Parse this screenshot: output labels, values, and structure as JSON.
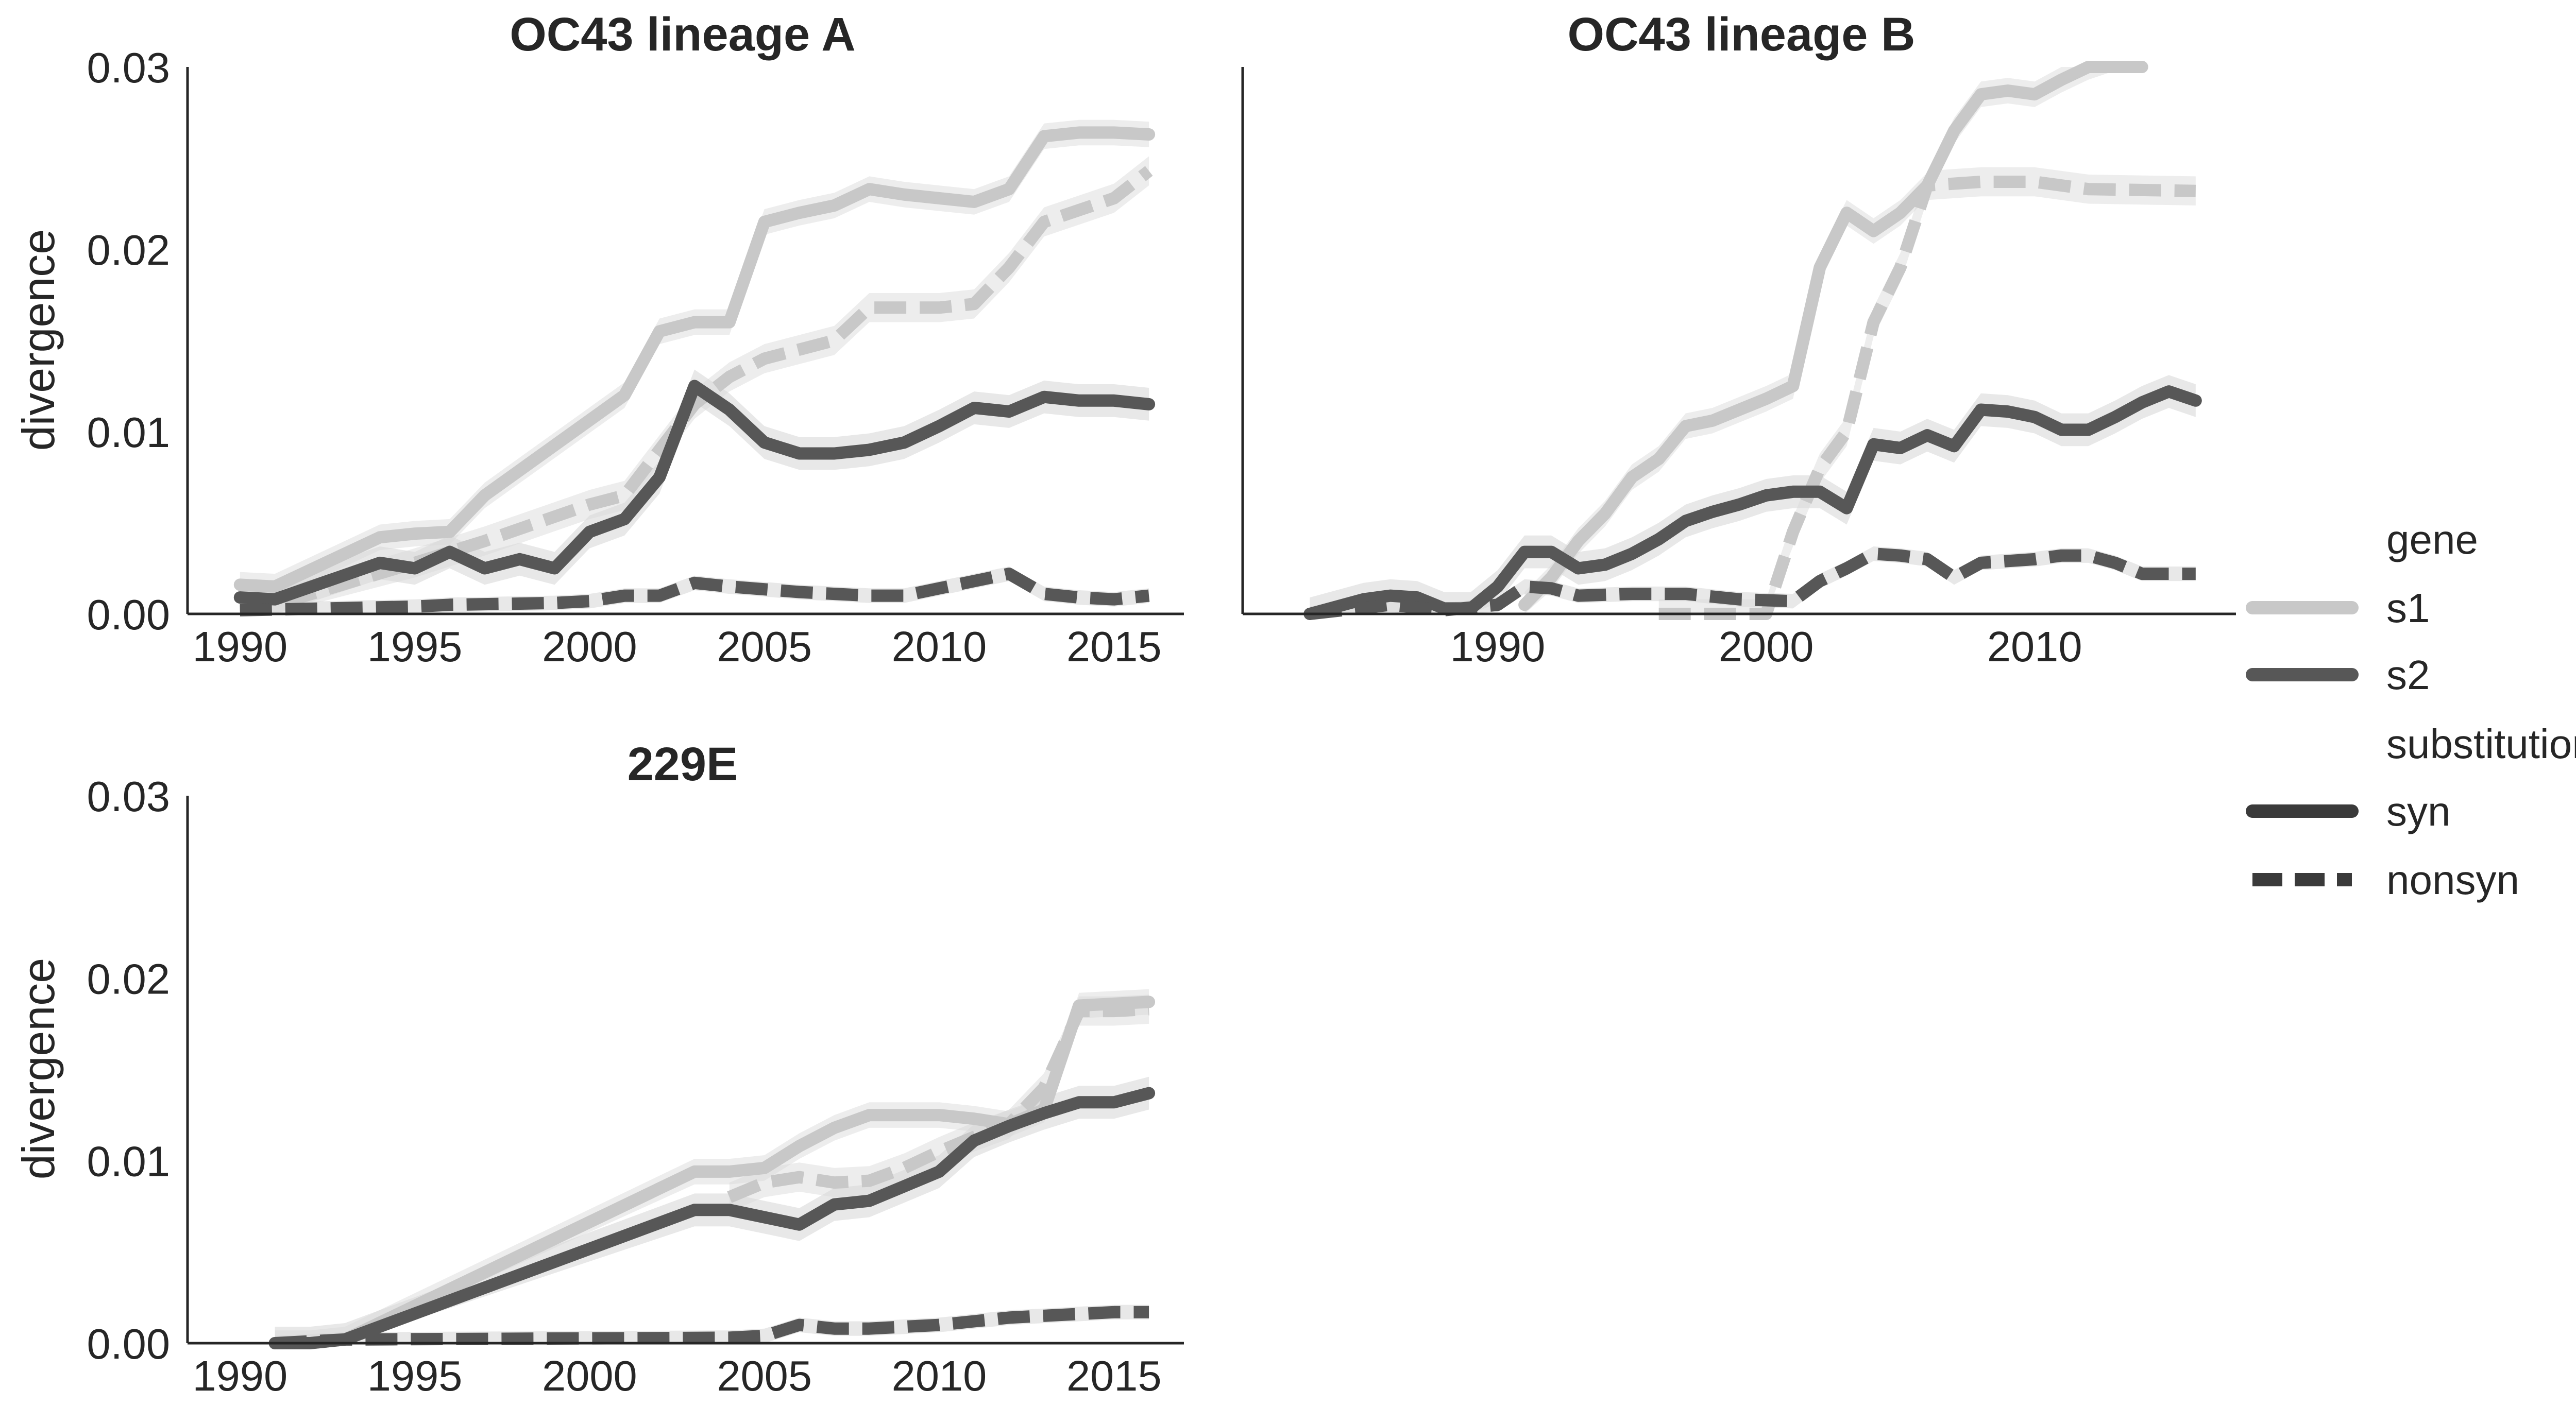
{
  "legend": {
    "gene_title": "gene",
    "gene_entries": [
      {
        "label": "s1",
        "color": "#c8c8c8"
      },
      {
        "label": "s2",
        "color": "#575757"
      }
    ],
    "substitution_title": "substitution",
    "substitution_entries": [
      {
        "label": "syn",
        "style": "solid",
        "color": "#3a3a3a"
      },
      {
        "label": "nonsyn",
        "style": "dashed",
        "color": "#3a3a3a"
      }
    ]
  },
  "colors": {
    "s1": "#c8c8c8",
    "s2": "#575757",
    "band": "#d8d8d8",
    "axis": "#262626"
  },
  "chart_data": [
    {
      "type": "line",
      "title": "OC43 lineage A",
      "ylabel": "divergence",
      "xlim": [
        1988.5,
        2017
      ],
      "ylim": [
        0,
        0.03
      ],
      "xticks": [
        1990,
        1995,
        2000,
        2005,
        2010,
        2015
      ],
      "yticks": [
        "0.00",
        "0.01",
        "0.02",
        "0.03"
      ],
      "series": [
        {
          "gene": "s1",
          "substitution": "syn",
          "x": [
            1990,
            1991,
            1994,
            1995,
            1996,
            1997,
            2001,
            2002,
            2003,
            2004,
            2005,
            2006,
            2007,
            2008,
            2009,
            2010,
            2011,
            2012,
            2013,
            2014,
            2015,
            2016
          ],
          "y": [
            0.0016,
            0.0015,
            0.0042,
            0.0044,
            0.0045,
            0.0065,
            0.012,
            0.0155,
            0.016,
            0.016,
            0.0215,
            0.022,
            0.0224,
            0.0233,
            0.023,
            0.0228,
            0.0226,
            0.0233,
            0.0262,
            0.0264,
            0.0264,
            0.0263
          ]
        },
        {
          "gene": "s1",
          "substitution": "nonsyn",
          "x": [
            1990,
            1991,
            1995,
            1997,
            2000,
            2001,
            2002,
            2003,
            2004,
            2005,
            2007,
            2008,
            2010,
            2011,
            2012,
            2013,
            2015,
            2016
          ],
          "y": [
            0.0005,
            0.0005,
            0.0028,
            0.004,
            0.006,
            0.0065,
            0.009,
            0.0115,
            0.013,
            0.014,
            0.015,
            0.0168,
            0.0168,
            0.017,
            0.019,
            0.0215,
            0.0228,
            0.0243
          ]
        },
        {
          "gene": "s2",
          "substitution": "syn",
          "x": [
            1990,
            1991,
            1994,
            1995,
            1996,
            1997,
            1998,
            1999,
            2000,
            2001,
            2002,
            2003,
            2004,
            2005,
            2006,
            2007,
            2008,
            2009,
            2010,
            2011,
            2012,
            2013,
            2014,
            2015,
            2016
          ],
          "y": [
            0.0009,
            0.0008,
            0.0028,
            0.0025,
            0.0034,
            0.0025,
            0.003,
            0.0025,
            0.0045,
            0.0052,
            0.0075,
            0.0125,
            0.0112,
            0.0094,
            0.0088,
            0.0088,
            0.009,
            0.0094,
            0.0103,
            0.0113,
            0.0111,
            0.0119,
            0.0117,
            0.0117,
            0.0115
          ]
        },
        {
          "gene": "s2",
          "substitution": "nonsyn",
          "x": [
            1990,
            1995,
            1996,
            1999,
            2000,
            2001,
            2002,
            2003,
            2004,
            2006,
            2007,
            2008,
            2009,
            2010,
            2011,
            2012,
            2013,
            2014,
            2015,
            2016
          ],
          "y": [
            0.0002,
            0.0004,
            0.0005,
            0.0006,
            0.0007,
            0.001,
            0.001,
            0.0017,
            0.0015,
            0.0012,
            0.0011,
            0.001,
            0.001,
            0.0014,
            0.0018,
            0.0022,
            0.0011,
            0.0009,
            0.0008,
            0.001
          ]
        }
      ]
    },
    {
      "type": "line",
      "title": "OC43 lineage B",
      "ylabel": "",
      "xlim": [
        1980.5,
        2017.5
      ],
      "ylim": [
        0,
        0.03
      ],
      "xticks": [
        1990,
        2000,
        2010
      ],
      "yticks": [],
      "series": [
        {
          "gene": "s1",
          "substitution": "syn",
          "x": [
            1991,
            1992,
            1993,
            1994,
            1995,
            1996,
            1997,
            1998,
            1999,
            2000,
            2001,
            2002,
            2003,
            2004,
            2005,
            2006,
            2007,
            2008,
            2009,
            2010,
            2011,
            2012,
            2013,
            2014
          ],
          "y": [
            0.0005,
            0.002,
            0.004,
            0.0055,
            0.0075,
            0.0085,
            0.0103,
            0.0106,
            0.0112,
            0.0118,
            0.0125,
            0.019,
            0.022,
            0.021,
            0.022,
            0.0235,
            0.0265,
            0.0285,
            0.0287,
            0.0285,
            0.0293,
            0.03,
            0.0305,
            0.031
          ]
        },
        {
          "gene": "s1",
          "substitution": "nonsyn",
          "x": [
            1996,
            1999,
            2000,
            2001,
            2002,
            2003,
            2004,
            2005,
            2006,
            2008,
            2010,
            2012,
            2016
          ],
          "y": [
            0.0,
            0.0,
            0.0,
            0.0045,
            0.008,
            0.01,
            0.016,
            0.019,
            0.0235,
            0.0237,
            0.0237,
            0.0233,
            0.0232
          ]
        },
        {
          "gene": "s2",
          "substitution": "syn",
          "x": [
            1983,
            1985,
            1986,
            1987,
            1988,
            1989,
            1990,
            1991,
            1992,
            1993,
            1994,
            1995,
            1996,
            1997,
            1998,
            1999,
            2000,
            2001,
            2002,
            2003,
            2004,
            2005,
            2006,
            2007,
            2008,
            2009,
            2010,
            2011,
            2012,
            2013,
            2014,
            2015,
            2016
          ],
          "y": [
            0.0,
            0.0008,
            0.001,
            0.0009,
            0.0003,
            0.0003,
            0.0015,
            0.0034,
            0.0034,
            0.0025,
            0.0027,
            0.0033,
            0.0041,
            0.0051,
            0.0056,
            0.006,
            0.0065,
            0.0067,
            0.0067,
            0.0058,
            0.0093,
            0.0091,
            0.0098,
            0.0092,
            0.0112,
            0.0111,
            0.0108,
            0.0101,
            0.0101,
            0.0108,
            0.0116,
            0.0122,
            0.0117
          ]
        },
        {
          "gene": "s2",
          "substitution": "nonsyn",
          "x": [
            1983,
            1986,
            1988,
            1990,
            1991,
            1992,
            1993,
            1995,
            1997,
            1999,
            2001,
            2002,
            2003,
            2004,
            2005,
            2006,
            2007,
            2008,
            2010,
            2011,
            2012,
            2013,
            2014,
            2016
          ],
          "y": [
            0.0,
            0.0005,
            0.0002,
            0.0005,
            0.0015,
            0.0014,
            0.001,
            0.0011,
            0.0011,
            0.0008,
            0.0007,
            0.0018,
            0.0025,
            0.0033,
            0.0032,
            0.003,
            0.002,
            0.0028,
            0.003,
            0.0032,
            0.0032,
            0.0028,
            0.0022,
            0.0022
          ]
        }
      ]
    },
    {
      "type": "line",
      "title": "229E",
      "ylabel": "divergence",
      "xlim": [
        1988.5,
        2017
      ],
      "ylim": [
        0,
        0.03
      ],
      "xticks": [
        1990,
        1995,
        2000,
        2005,
        2010,
        2015
      ],
      "yticks": [
        "0.00",
        "0.01",
        "0.02",
        "0.03"
      ],
      "series": [
        {
          "gene": "s1",
          "substitution": "syn",
          "x": [
            1991,
            1992,
            1993,
            2003,
            2004,
            2005,
            2006,
            2007,
            2008,
            2009,
            2010,
            2011,
            2012,
            2013,
            2014,
            2015,
            2016
          ],
          "y": [
            0.0,
            0.0,
            0.0002,
            0.0094,
            0.0094,
            0.0096,
            0.0108,
            0.0118,
            0.0125,
            0.0125,
            0.0125,
            0.0123,
            0.012,
            0.0128,
            0.0185,
            0.0186,
            0.0187
          ]
        },
        {
          "gene": "s1",
          "substitution": "nonsyn",
          "x": [
            2004,
            2005,
            2006,
            2007,
            2008,
            2009,
            2010,
            2011,
            2012,
            2013,
            2014,
            2015,
            2016
          ],
          "y": [
            0.008,
            0.0088,
            0.0091,
            0.0088,
            0.0089,
            0.0096,
            0.0105,
            0.0113,
            0.012,
            0.014,
            0.0182,
            0.0182,
            0.0183
          ]
        },
        {
          "gene": "s2",
          "substitution": "syn",
          "x": [
            1991,
            1992,
            1993,
            2003,
            2004,
            2005,
            2006,
            2007,
            2008,
            2009,
            2010,
            2011,
            2012,
            2013,
            2014,
            2015,
            2016
          ],
          "y": [
            0.0,
            0.0,
            0.0002,
            0.0073,
            0.0073,
            0.0069,
            0.0065,
            0.0076,
            0.0078,
            0.0086,
            0.0094,
            0.0111,
            0.0119,
            0.0126,
            0.0132,
            0.0132,
            0.0137
          ]
        },
        {
          "gene": "s2",
          "substitution": "nonsyn",
          "x": [
            1991,
            1993,
            2004,
            2005,
            2006,
            2007,
            2008,
            2009,
            2010,
            2011,
            2012,
            2013,
            2014,
            2015,
            2016
          ],
          "y": [
            0.0,
            0.0002,
            0.0003,
            0.0004,
            0.001,
            0.0008,
            0.0008,
            0.0009,
            0.001,
            0.0012,
            0.0014,
            0.0015,
            0.0016,
            0.0017,
            0.0017
          ]
        }
      ]
    }
  ]
}
